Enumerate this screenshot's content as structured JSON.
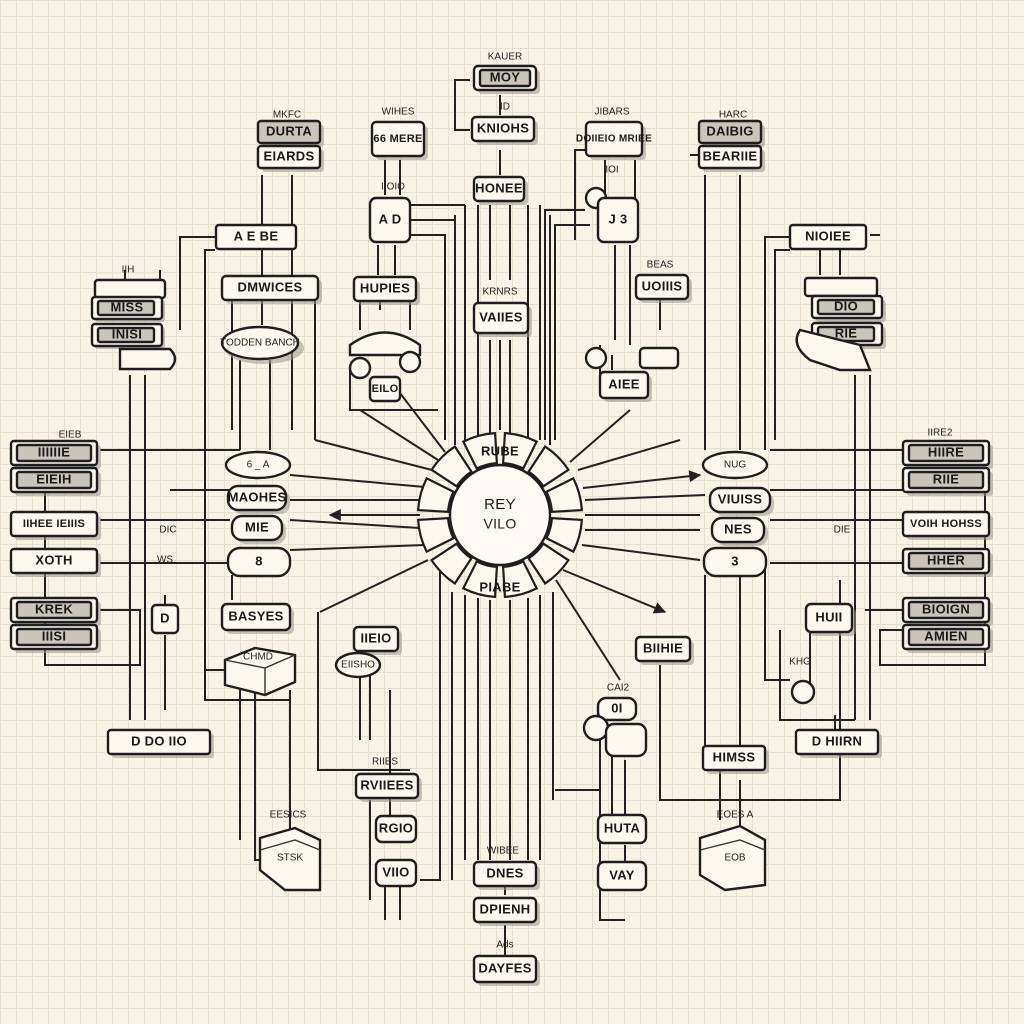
{
  "hub": {
    "top": "RUBE",
    "center_line1": "REY",
    "center_line2": "VILO",
    "bottom": "PIABE"
  },
  "left": {
    "cap_label": "MKFC",
    "top_box1": "DURTA",
    "top_box2": "EIARDS",
    "mid_box": "A  E  BE",
    "wide_box": "DMWICES",
    "oval_label": "TODDEN BANCH",
    "stack_label": "IIH",
    "stack1": "MISS",
    "stack2": "INISI",
    "cyl_label": "6 _ A",
    "node_a": "MAOHES",
    "node_b": "MIE",
    "node_c": "8",
    "side_label": "DIC",
    "edge_label": "EIEB",
    "edge1": "IIIIIIE",
    "edge2": "EIEIH",
    "edge3": "IIHEE IEIIIS",
    "edge4": "XOTH",
    "edge5": "KREK",
    "edge6": "IIISI",
    "ws_label": "WS",
    "small_box": "D",
    "mid_box2": "BASYES",
    "cube_label": "CHMD",
    "bottom_box": "D    DO    IIO",
    "iso_label": "EESICS",
    "iso_text": "STSK"
  },
  "center_left": {
    "cap_label": "WIHES",
    "top_box": "66 MERE",
    "sub_label": "IIOIO",
    "ab_box": "A D",
    "wide_box": "HUPIES",
    "sensor_box": "EILO",
    "lower_box": "IIEIO",
    "lower_oval": "EIISHO",
    "bot_label": "RIIES",
    "bot_box1": "RVIIEES",
    "bot_box2": "RGIO",
    "bot_box3": "VIIO"
  },
  "center_top": {
    "cap_label": "KAUER",
    "top_box": "MOY",
    "sub": "ID",
    "box2": "KNIOHS",
    "box3": "HONEE",
    "lbl": "KRNRS",
    "box4": "VAIIES"
  },
  "center_bottom": {
    "cap_label": "WIBEE",
    "box1": "DNES",
    "box2": "DPIENH",
    "lbl": "Ads",
    "box3": "DAYFES"
  },
  "center_right": {
    "cap_label": "JIBARS",
    "top_box": "DOIIEIO MRIEE",
    "sub": "IOI",
    "box_j": "J  3",
    "tag": "BEAS",
    "box_a": "UOIIIS",
    "box_b": "AIEE",
    "cyl_lbl": "CAI2",
    "cyl_box": "0I",
    "bot_box1": "BIIHIE",
    "bot_box2": "HUTA",
    "bot_box3": "VAY"
  },
  "right": {
    "cap_label": "HARC",
    "top_box1": "DAIBIG",
    "top_box2": "BEARIIE",
    "mid_box": "NIOIEE",
    "stack1": "DIO",
    "stack2": "RIE",
    "cyl_label": "NUG",
    "node_a": "VIUISS",
    "node_b": "NES",
    "node_c": "3",
    "side_label": "DIE",
    "edge_label": "IIRE2",
    "edge1": "HIIRE",
    "edge2": "RIIE",
    "edge3": "VOIH HOHSS",
    "edge4": "HHER",
    "edge5": "BIOIGN",
    "edge6": "AMIEN",
    "huh_box": "HUII",
    "kh_label": "KHG",
    "bottom_box": "D    HIIRN",
    "hms_box": "HIMSS",
    "iso_label": "EOES A",
    "iso_text": "EOB"
  }
}
